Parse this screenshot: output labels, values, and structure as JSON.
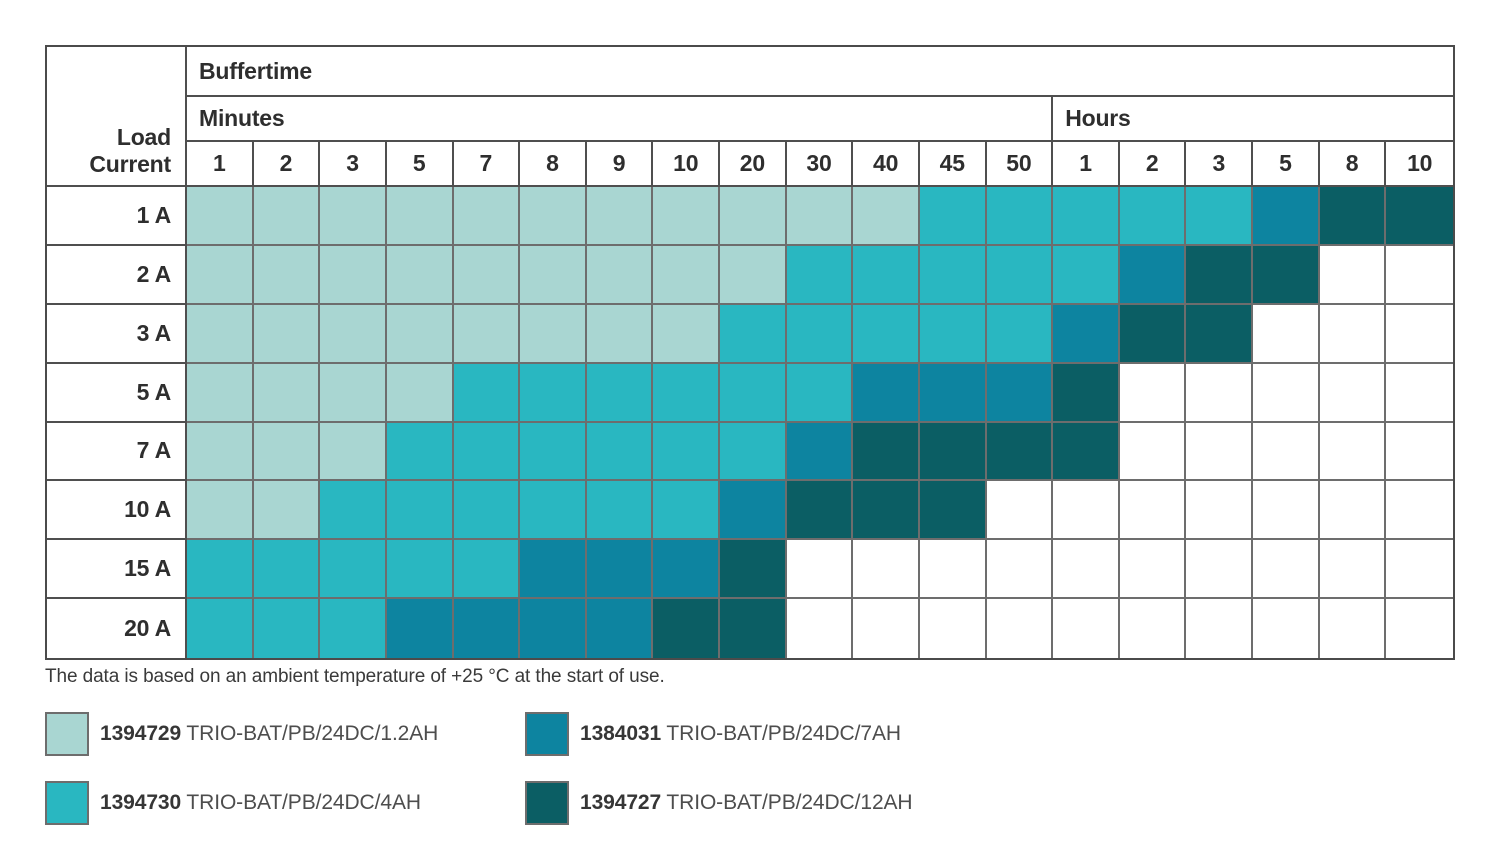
{
  "table": {
    "corner_label": "Load\nCurrent",
    "top_header": "Buffertime",
    "group_headers": {
      "minutes": "Minutes",
      "hours": "Hours"
    }
  },
  "footnote": "The data is based on an ambient temperature of +25 °C at the start of use.",
  "colors": {
    "product_1394729": "#a9d6d2",
    "product_1394730": "#29b7c1",
    "product_1384031": "#0d84a0",
    "product_1394727": "#0b5e64",
    "empty": "#ffffff",
    "grid_line": "#6d6d6d",
    "outer_border": "#4b4b4b",
    "text": "#2e2e2e"
  },
  "legend": {
    "columns": [
      [
        {
          "code": "1394729",
          "name": "TRIO-BAT/PB/24DC/1.2AH",
          "color": "#a9d6d2"
        },
        {
          "code": "1394730",
          "name": "TRIO-BAT/PB/24DC/4AH",
          "color": "#29b7c1"
        }
      ],
      [
        {
          "code": "1384031",
          "name": "TRIO-BAT/PB/24DC/7AH",
          "color": "#0d84a0"
        },
        {
          "code": "1394727",
          "name": "TRIO-BAT/PB/24DC/12AH",
          "color": "#0b5e64"
        }
      ]
    ]
  },
  "chart_data": {
    "type": "heatmap",
    "title": "Buffertime",
    "x_axis": {
      "groups": [
        {
          "label": "Minutes",
          "ticks": [
            "1",
            "2",
            "3",
            "5",
            "7",
            "8",
            "9",
            "10",
            "20",
            "30",
            "40",
            "45",
            "50"
          ]
        },
        {
          "label": "Hours",
          "ticks": [
            "1",
            "2",
            "3",
            "5",
            "8",
            "10"
          ]
        }
      ]
    },
    "y_axis": {
      "label": "Load Current",
      "ticks": [
        "1 A",
        "2 A",
        "3 A",
        "5 A",
        "7 A",
        "10 A",
        "15 A",
        "20 A"
      ]
    },
    "cell_legend": {
      "0": "none",
      "1": "1394729 TRIO-BAT/PB/24DC/1.2AH",
      "2": "1394730 TRIO-BAT/PB/24DC/4AH",
      "3": "1384031 TRIO-BAT/PB/24DC/7AH",
      "4": "1394727 TRIO-BAT/PB/24DC/12AH"
    },
    "matrix": [
      [
        1,
        1,
        1,
        1,
        1,
        1,
        1,
        1,
        1,
        1,
        1,
        2,
        2,
        2,
        2,
        2,
        3,
        4,
        4
      ],
      [
        1,
        1,
        1,
        1,
        1,
        1,
        1,
        1,
        1,
        2,
        2,
        2,
        2,
        2,
        3,
        4,
        4,
        0,
        0
      ],
      [
        1,
        1,
        1,
        1,
        1,
        1,
        1,
        1,
        2,
        2,
        2,
        2,
        2,
        3,
        4,
        4,
        0,
        0,
        0
      ],
      [
        1,
        1,
        1,
        1,
        2,
        2,
        2,
        2,
        2,
        2,
        3,
        3,
        3,
        4,
        0,
        0,
        0,
        0,
        0
      ],
      [
        1,
        1,
        1,
        2,
        2,
        2,
        2,
        2,
        2,
        3,
        4,
        4,
        4,
        4,
        0,
        0,
        0,
        0,
        0
      ],
      [
        1,
        1,
        2,
        2,
        2,
        2,
        2,
        2,
        3,
        4,
        4,
        4,
        0,
        0,
        0,
        0,
        0,
        0,
        0
      ],
      [
        2,
        2,
        2,
        2,
        2,
        3,
        3,
        3,
        4,
        0,
        0,
        0,
        0,
        0,
        0,
        0,
        0,
        0,
        0
      ],
      [
        2,
        2,
        2,
        3,
        3,
        3,
        3,
        4,
        4,
        0,
        0,
        0,
        0,
        0,
        0,
        0,
        0,
        0,
        0
      ]
    ],
    "footnote": "The data is based on an ambient temperature of +25 °C at the start of use."
  }
}
